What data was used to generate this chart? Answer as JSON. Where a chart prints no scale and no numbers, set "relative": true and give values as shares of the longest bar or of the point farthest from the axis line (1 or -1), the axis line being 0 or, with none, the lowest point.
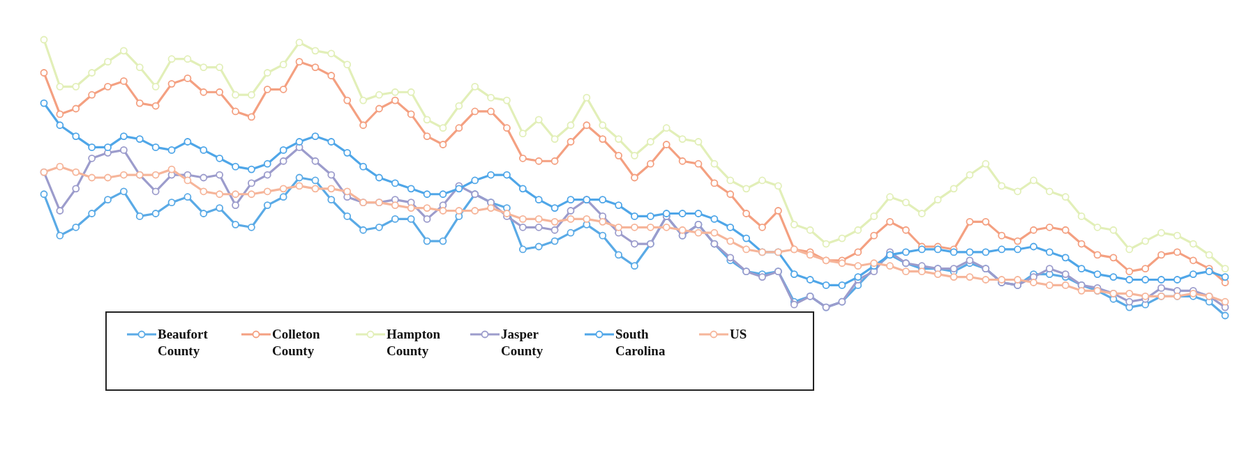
{
  "chart_data": {
    "type": "line",
    "relative": true,
    "legend": "bottom left",
    "marker": "circle",
    "line_style": "solid",
    "categories": [
      null,
      null,
      null,
      null,
      null,
      null,
      null,
      null,
      null,
      null,
      null,
      null,
      null,
      null,
      null,
      null,
      null,
      null,
      null,
      null,
      null,
      null,
      null,
      null,
      null,
      null,
      null,
      null,
      null,
      null,
      null,
      null,
      null,
      null,
      null,
      null,
      null,
      null,
      null,
      null,
      null,
      null,
      null,
      null,
      null,
      null,
      null,
      null,
      null,
      null,
      null,
      null,
      null,
      null,
      null,
      null,
      null,
      null,
      null,
      null,
      null,
      null,
      null,
      null,
      null,
      null,
      null,
      null,
      null,
      null,
      null,
      null,
      null,
      null,
      null
    ],
    "series": [
      {
        "name": "Beaufort County",
        "color": "#5aaae6",
        "values": [
          0.44,
          0.29,
          0.32,
          0.37,
          0.42,
          0.45,
          0.36,
          0.37,
          0.41,
          0.43,
          0.37,
          0.39,
          0.33,
          0.32,
          0.4,
          0.43,
          0.5,
          0.49,
          0.42,
          0.36,
          0.31,
          0.32,
          0.35,
          0.35,
          0.27,
          0.27,
          0.36,
          0.44,
          0.41,
          0.39,
          0.24,
          0.25,
          0.27,
          0.3,
          0.33,
          0.29,
          0.22,
          0.18,
          0.26,
          0.36,
          0.29,
          0.33,
          0.26,
          0.2,
          0.16,
          0.15,
          0.16,
          0.05,
          0.07,
          0.03,
          0.05,
          0.11,
          0.17,
          0.22,
          0.19,
          0.17,
          0.17,
          0.16,
          0.19,
          0.17,
          0.12,
          0.11,
          0.15,
          0.15,
          0.14,
          0.11,
          0.09,
          0.06,
          0.03,
          0.04,
          0.07,
          0.07,
          0.07,
          0.05,
          0.0
        ]
      },
      {
        "name": "Colleton County",
        "color": "#f4a081",
        "values": [
          0.88,
          0.73,
          0.75,
          0.8,
          0.83,
          0.85,
          0.77,
          0.76,
          0.84,
          0.86,
          0.81,
          0.81,
          0.74,
          0.72,
          0.82,
          0.82,
          0.92,
          0.9,
          0.87,
          0.78,
          0.69,
          0.75,
          0.78,
          0.73,
          0.65,
          0.62,
          0.68,
          0.74,
          0.74,
          0.68,
          0.57,
          0.56,
          0.56,
          0.63,
          0.69,
          0.64,
          0.58,
          0.5,
          0.55,
          0.62,
          0.56,
          0.55,
          0.48,
          0.44,
          0.37,
          0.32,
          0.38,
          0.24,
          0.23,
          0.2,
          0.2,
          0.23,
          0.29,
          0.34,
          0.31,
          0.25,
          0.25,
          0.24,
          0.34,
          0.34,
          0.29,
          0.27,
          0.31,
          0.32,
          0.31,
          0.26,
          0.22,
          0.21,
          0.16,
          0.17,
          0.22,
          0.23,
          0.2,
          0.17,
          0.12
        ]
      },
      {
        "name": "Hampton County",
        "color": "#e2efb8",
        "values": [
          1.0,
          0.83,
          0.83,
          0.88,
          0.92,
          0.96,
          0.9,
          0.83,
          0.93,
          0.93,
          0.9,
          0.9,
          0.8,
          0.8,
          0.88,
          0.91,
          0.99,
          0.96,
          0.95,
          0.91,
          0.78,
          0.8,
          0.81,
          0.81,
          0.71,
          0.68,
          0.76,
          0.83,
          0.79,
          0.78,
          0.66,
          0.71,
          0.64,
          0.69,
          0.79,
          0.69,
          0.64,
          0.58,
          0.63,
          0.68,
          0.64,
          0.63,
          0.55,
          0.49,
          0.46,
          0.49,
          0.47,
          0.33,
          0.31,
          0.26,
          0.28,
          0.31,
          0.36,
          0.43,
          0.41,
          0.37,
          0.42,
          0.46,
          0.51,
          0.55,
          0.47,
          0.45,
          0.49,
          0.45,
          0.43,
          0.36,
          0.32,
          0.31,
          0.24,
          0.27,
          0.3,
          0.29,
          0.26,
          0.22,
          0.17
        ]
      },
      {
        "name": "Jasper County",
        "color": "#9c9ccc",
        "values": [
          0.52,
          0.38,
          0.46,
          0.57,
          0.59,
          0.6,
          0.51,
          0.45,
          0.51,
          0.51,
          0.5,
          0.51,
          0.4,
          0.48,
          0.51,
          0.56,
          0.61,
          0.56,
          0.51,
          0.43,
          0.41,
          0.41,
          0.42,
          0.41,
          0.35,
          0.4,
          0.47,
          0.44,
          0.41,
          0.36,
          0.32,
          0.32,
          0.31,
          0.38,
          0.42,
          0.36,
          0.3,
          0.26,
          0.26,
          0.36,
          0.29,
          0.33,
          0.26,
          0.21,
          0.16,
          0.14,
          0.16,
          0.04,
          0.07,
          0.03,
          0.05,
          0.13,
          0.16,
          0.23,
          0.19,
          0.18,
          0.17,
          0.17,
          0.2,
          0.17,
          0.12,
          0.11,
          0.14,
          0.17,
          0.15,
          0.11,
          0.1,
          0.08,
          0.05,
          0.06,
          0.1,
          0.09,
          0.09,
          0.07,
          0.03
        ]
      },
      {
        "name": "South Carolina",
        "color": "#4fa6e8",
        "values": [
          0.77,
          0.69,
          0.65,
          0.61,
          0.61,
          0.65,
          0.64,
          0.61,
          0.6,
          0.63,
          0.6,
          0.57,
          0.54,
          0.53,
          0.55,
          0.6,
          0.63,
          0.65,
          0.63,
          0.59,
          0.54,
          0.5,
          0.48,
          0.46,
          0.44,
          0.44,
          0.46,
          0.49,
          0.51,
          0.51,
          0.46,
          0.42,
          0.39,
          0.42,
          0.42,
          0.42,
          0.4,
          0.36,
          0.36,
          0.37,
          0.37,
          0.37,
          0.35,
          0.32,
          0.28,
          0.23,
          0.23,
          0.15,
          0.13,
          0.11,
          0.11,
          0.14,
          0.18,
          0.22,
          0.23,
          0.24,
          0.24,
          0.23,
          0.23,
          0.23,
          0.24,
          0.24,
          0.25,
          0.23,
          0.21,
          0.17,
          0.15,
          0.14,
          0.13,
          0.13,
          0.13,
          0.13,
          0.15,
          0.16,
          0.14
        ]
      },
      {
        "name": "US",
        "color": "#f6b59a",
        "values": [
          0.52,
          0.54,
          0.52,
          0.5,
          0.5,
          0.51,
          0.51,
          0.51,
          0.53,
          0.49,
          0.45,
          0.44,
          0.44,
          0.44,
          0.45,
          0.46,
          0.47,
          0.46,
          0.46,
          0.45,
          0.41,
          0.41,
          0.4,
          0.39,
          0.39,
          0.38,
          0.38,
          0.38,
          0.39,
          0.37,
          0.35,
          0.35,
          0.34,
          0.35,
          0.35,
          0.34,
          0.32,
          0.32,
          0.32,
          0.32,
          0.31,
          0.3,
          0.3,
          0.27,
          0.24,
          0.23,
          0.23,
          0.24,
          0.22,
          0.2,
          0.19,
          0.18,
          0.19,
          0.18,
          0.16,
          0.16,
          0.15,
          0.14,
          0.14,
          0.13,
          0.13,
          0.13,
          0.12,
          0.11,
          0.11,
          0.09,
          0.09,
          0.08,
          0.08,
          0.07,
          0.07,
          0.07,
          0.08,
          0.07,
          0.05
        ]
      }
    ]
  }
}
